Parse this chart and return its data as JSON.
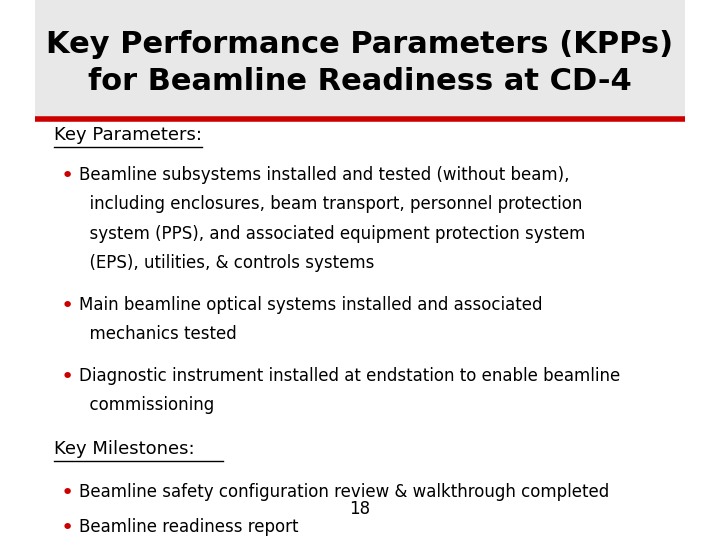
{
  "title_line1": "Key Performance Parameters (KPPs)",
  "title_line2": "for Beamline Readiness at CD-4",
  "title_fontsize": 22,
  "title_color": "#000000",
  "title_bg": "#e8e8e8",
  "red_line_color": "#cc0000",
  "background_color": "#ffffff",
  "section1_header": "Key Parameters:",
  "section2_header": "Key Milestones:",
  "bullet_color": "#cc0000",
  "footer_number": "18",
  "text_fontsize": 12,
  "header_fontsize": 13,
  "bullet1_lines": [
    "Beamline subsystems installed and tested (without beam),",
    "  including enclosures, beam transport, personnel protection",
    "  system (PPS), and associated equipment protection system",
    "  (EPS), utilities, & controls systems"
  ],
  "bullet2_lines": [
    "Main beamline optical systems installed and associated",
    "  mechanics tested"
  ],
  "bullet3_lines": [
    "Diagnostic instrument installed at endstation to enable beamline",
    "  commissioning"
  ],
  "bullet4_lines": [
    "Beamline safety configuration review & walkthrough completed"
  ],
  "bullet5_lines": [
    "Beamline readiness report"
  ]
}
